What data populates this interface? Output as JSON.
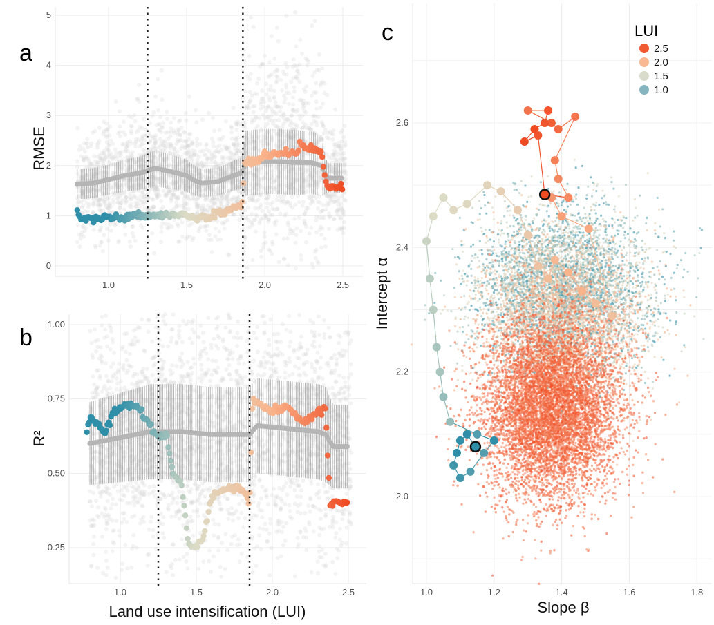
{
  "colors": {
    "lui_1_0": "#2f8fa8",
    "lui_1_5": "#dcdcc6",
    "lui_2_0": "#f9b48c",
    "lui_2_5": "#ef4a22",
    "gray_cloud": "#d3d3d3",
    "gray_mean": "#b5b5b5"
  },
  "chart_data": [
    {
      "type": "scatter",
      "panel_label": "a",
      "xlabel": "",
      "ylabel": "RMSE",
      "xlim": [
        0.72,
        2.58
      ],
      "ylim": [
        -0.2,
        5.1
      ],
      "xticks": [
        "1.0",
        "1.5",
        "2.0",
        "2.5"
      ],
      "yticks": [
        "0",
        "1",
        "2",
        "3",
        "4",
        "5"
      ],
      "grid": true,
      "vlines": [
        1.25,
        1.86
      ],
      "series": [
        {
          "kind": "mean-with-errorbars",
          "x": [
            0.8,
            0.9,
            1.0,
            1.1,
            1.2,
            1.25,
            1.3,
            1.4,
            1.5,
            1.55,
            1.6,
            1.7,
            1.8,
            1.85,
            1.88,
            2.0,
            2.1,
            2.2,
            2.3,
            2.36,
            2.4,
            2.5
          ],
          "y": [
            1.63,
            1.65,
            1.72,
            1.8,
            1.85,
            1.9,
            1.95,
            1.88,
            1.8,
            1.7,
            1.65,
            1.68,
            1.8,
            1.85,
            2.05,
            2.08,
            2.08,
            2.06,
            2.06,
            2.0,
            1.75,
            1.75
          ],
          "err": [
            0.3,
            0.3,
            0.3,
            0.32,
            0.33,
            0.35,
            0.36,
            0.34,
            0.32,
            0.3,
            0.28,
            0.28,
            0.3,
            0.3,
            0.65,
            0.65,
            0.65,
            0.65,
            0.62,
            0.62,
            0.3,
            0.3
          ]
        },
        {
          "kind": "lui-colored",
          "x": [
            0.8,
            0.82,
            0.9,
            1.0,
            1.1,
            1.2,
            1.25,
            1.3,
            1.4,
            1.5,
            1.57,
            1.6,
            1.7,
            1.8,
            1.85,
            1.86,
            1.87,
            1.95,
            2.0,
            2.1,
            2.2,
            2.22,
            2.3,
            2.36,
            2.4,
            2.5
          ],
          "y": [
            1.05,
            0.95,
            0.94,
            0.97,
            0.97,
            1.0,
            1.0,
            1.02,
            1.0,
            1.0,
            0.92,
            0.98,
            1.05,
            1.15,
            1.2,
            1.3,
            2.05,
            2.1,
            2.2,
            2.25,
            2.25,
            2.4,
            2.32,
            2.25,
            1.58,
            1.57
          ]
        }
      ]
    },
    {
      "type": "scatter",
      "panel_label": "b",
      "xlabel": "Land use intensification (LUI)",
      "ylabel": "R²",
      "xlim": [
        0.65,
        2.62
      ],
      "ylim": [
        0.12,
        1.04
      ],
      "xticks": [
        "1.0",
        "1.5",
        "2.0",
        "2.5"
      ],
      "yticks": [
        "0.25",
        "0.50",
        "0.75",
        "1.00"
      ],
      "grid": true,
      "vlines": [
        1.25,
        1.85
      ],
      "series": [
        {
          "kind": "mean-with-errorbars",
          "x": [
            0.8,
            1.0,
            1.2,
            1.4,
            1.6,
            1.85,
            1.9,
            2.1,
            2.3,
            2.35,
            2.4,
            2.5
          ],
          "y": [
            0.6,
            0.62,
            0.64,
            0.64,
            0.63,
            0.63,
            0.66,
            0.65,
            0.64,
            0.63,
            0.59,
            0.59
          ],
          "err": [
            0.14,
            0.15,
            0.16,
            0.16,
            0.16,
            0.16,
            0.16,
            0.16,
            0.16,
            0.16,
            0.14,
            0.14
          ]
        },
        {
          "kind": "lui-colored",
          "x": [
            0.78,
            0.8,
            0.85,
            0.9,
            0.95,
            1.0,
            1.05,
            1.1,
            1.2,
            1.25,
            1.3,
            1.35,
            1.4,
            1.45,
            1.5,
            1.55,
            1.6,
            1.65,
            1.7,
            1.8,
            1.85,
            1.87,
            1.95,
            2.0,
            2.1,
            2.2,
            2.3,
            2.35,
            2.38,
            2.5
          ],
          "y": [
            0.64,
            0.69,
            0.67,
            0.63,
            0.7,
            0.72,
            0.73,
            0.73,
            0.66,
            0.62,
            0.63,
            0.49,
            0.47,
            0.26,
            0.25,
            0.29,
            0.42,
            0.44,
            0.45,
            0.45,
            0.4,
            0.75,
            0.72,
            0.71,
            0.72,
            0.67,
            0.7,
            0.72,
            0.4,
            0.4
          ]
        }
      ]
    },
    {
      "type": "scatter",
      "panel_label": "c",
      "xlabel": "Slope β",
      "ylabel": "Intercept α",
      "xlim": [
        0.96,
        1.84
      ],
      "ylim": [
        1.86,
        2.79
      ],
      "xticks": [
        "1.0",
        "1.2",
        "1.4",
        "1.6",
        "1.8"
      ],
      "yticks": [
        "2.0",
        "2.2",
        "2.4",
        "2.6"
      ],
      "grid": true,
      "legend": {
        "title": "LUI",
        "position": "top-right",
        "entries": [
          {
            "label": "2.5",
            "color": "#f05a32"
          },
          {
            "label": "2.0",
            "color": "#f9b891"
          },
          {
            "label": "1.5",
            "color": "#d9dccb"
          },
          {
            "label": "1.0",
            "color": "#86b4bf"
          }
        ]
      },
      "trajectory": {
        "slope": [
          1.145,
          1.12,
          1.1,
          1.09,
          1.08,
          1.1,
          1.13,
          1.17,
          1.2,
          1.15,
          1.07,
          1.05,
          1.04,
          1.03,
          1.02,
          1.01,
          1.0,
          1.02,
          1.05,
          1.08,
          1.12,
          1.18,
          1.22,
          1.27,
          1.3,
          1.33,
          1.36,
          1.38,
          1.42,
          1.46,
          1.5,
          1.55,
          1.48,
          1.4,
          1.37,
          1.35,
          1.42,
          1.39,
          1.38,
          1.44,
          1.39,
          1.37,
          1.3,
          1.36,
          1.35,
          1.32,
          1.29,
          1.33,
          1.35
        ],
        "intercept": [
          2.08,
          2.1,
          2.09,
          2.07,
          2.05,
          2.03,
          2.04,
          2.07,
          2.09,
          2.1,
          2.12,
          2.16,
          2.2,
          2.24,
          2.3,
          2.35,
          2.41,
          2.45,
          2.48,
          2.46,
          2.47,
          2.5,
          2.49,
          2.46,
          2.42,
          2.37,
          2.35,
          2.38,
          2.36,
          2.33,
          2.31,
          2.29,
          2.43,
          2.45,
          2.48,
          2.485,
          2.48,
          2.51,
          2.54,
          2.61,
          2.59,
          2.6,
          2.62,
          2.62,
          2.6,
          2.59,
          2.57,
          2.58,
          2.485
        ],
        "lui": [
          1.0,
          1.0,
          1.0,
          1.0,
          1.05,
          1.05,
          1.1,
          1.1,
          1.0,
          1.1,
          1.3,
          1.3,
          1.35,
          1.35,
          1.4,
          1.4,
          1.45,
          1.5,
          1.5,
          1.55,
          1.55,
          1.6,
          1.65,
          1.7,
          1.75,
          1.8,
          1.9,
          1.95,
          2.0,
          2.0,
          1.9,
          1.85,
          2.05,
          2.1,
          2.15,
          2.5,
          2.2,
          2.2,
          2.25,
          2.3,
          2.35,
          2.4,
          2.3,
          2.45,
          2.45,
          2.5,
          2.5,
          2.45,
          2.5
        ]
      },
      "highlighted_points": [
        {
          "slope": 1.145,
          "intercept": 2.08,
          "lui": 1.0
        },
        {
          "slope": 1.35,
          "intercept": 2.485,
          "lui": 2.5
        }
      ],
      "clouds": [
        {
          "lui": "low",
          "slope_mean": 1.4,
          "intercept_mean": 2.33,
          "slope_sd": 0.13,
          "intercept_sd": 0.065
        },
        {
          "lui": "high",
          "slope_mean": 1.37,
          "intercept_mean": 2.14,
          "slope_sd": 0.1,
          "intercept_sd": 0.07
        }
      ]
    }
  ]
}
